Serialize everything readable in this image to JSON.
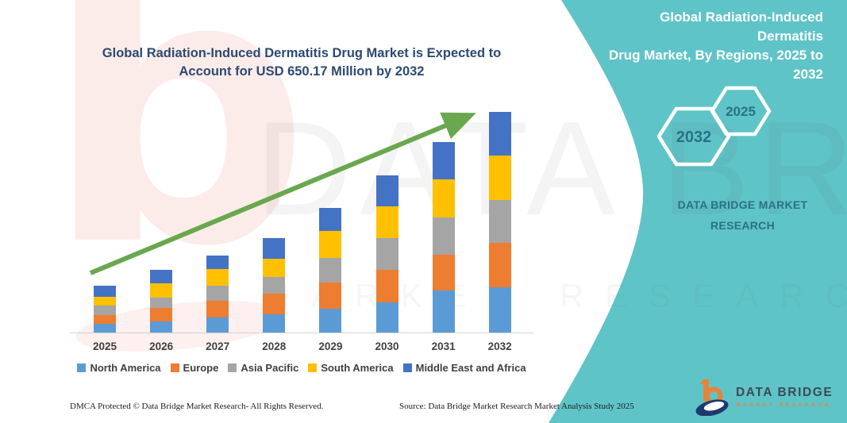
{
  "chart": {
    "title_line1": "Global Radiation-Induced Dermatitis Drug Market is Expected to",
    "title_line2": "Account for USD 650.17 Million by 2032"
  },
  "chart_data": {
    "type": "bar",
    "stacked": true,
    "title": "Global Radiation-Induced Dermatitis Drug Market is Expected to Account for USD 650.17 Million by 2032",
    "unit": "USD Million",
    "categories": [
      "2025",
      "2026",
      "2027",
      "2028",
      "2029",
      "2030",
      "2031",
      "2032"
    ],
    "series": [
      {
        "name": "North America",
        "color": "#5b9bd5",
        "values": [
          26,
          33,
          44,
          54,
          70,
          89,
          124,
          133
        ]
      },
      {
        "name": "Europe",
        "color": "#ed7d31",
        "values": [
          26,
          40,
          49,
          61,
          77,
          96,
          105,
          131
        ]
      },
      {
        "name": "Asia Pacific",
        "color": "#a5a5a5",
        "values": [
          28,
          30,
          44,
          49,
          73,
          94,
          110,
          126
        ]
      },
      {
        "name": "South America",
        "color": "#ffc000",
        "values": [
          26,
          42,
          49,
          54,
          80,
          94,
          112,
          131
        ]
      },
      {
        "name": "Middle East and Africa",
        "color": "#4472c4",
        "values": [
          33,
          40,
          42,
          61,
          68,
          91,
          110,
          129.17
        ]
      }
    ],
    "totals": [
      139,
      185,
      228,
      279,
      368,
      464,
      561,
      650.17
    ],
    "annotations": [
      "green upward trend arrow from 2025 bar to 2032 bar"
    ],
    "legend_position": "bottom",
    "grid": false,
    "axis_labels_shown": "x only"
  },
  "side_panel": {
    "accent_color": "#5fc4c8",
    "title_lines": [
      "Global Radiation-Induced Dermatitis",
      "Drug Market, By Regions, 2025 to",
      "2032"
    ],
    "hexagon_back_label": "2032",
    "hexagon_front_label": "2025",
    "brand_line1": "DATA BRIDGE MARKET",
    "brand_line2": "RESEARCH"
  },
  "footer": {
    "dmca": "DMCA Protected © Data Bridge Market Research-  All Rights Reserved.",
    "source": "Source: Data Bridge Market Research  Market Analysis Study 2025"
  },
  "logo": {
    "name": "DATA BRIDGE",
    "subtitle": "MARKET RESEARCH"
  },
  "watermark": {
    "letter": "b",
    "big_text": "DATA BRIDGE",
    "small_text": "MARKET RESEARCH"
  }
}
